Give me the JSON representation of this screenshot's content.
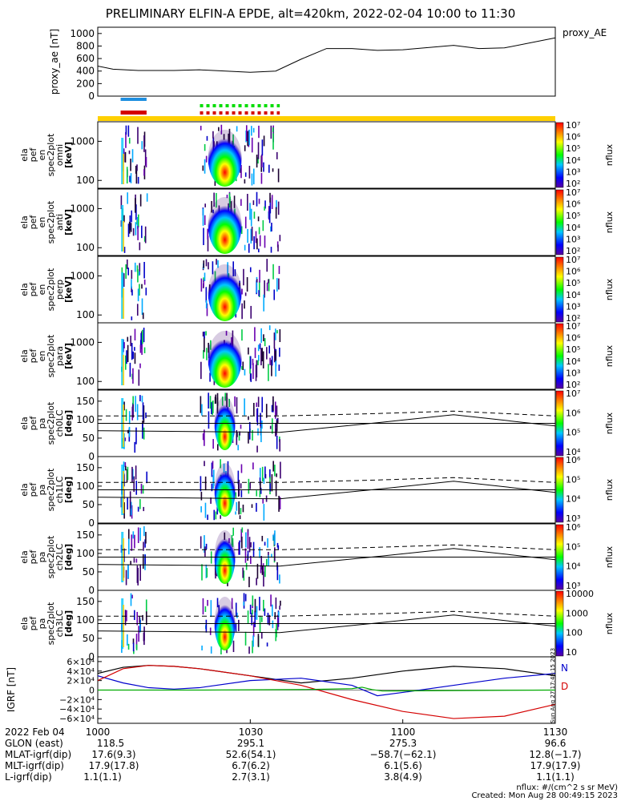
{
  "title": "PRELIMINARY ELFIN-A EPDE, alt=420km, 2022-02-04 10:00 to 11:30",
  "proxy_ae": {
    "ylabel": "proxy_ae [nT]",
    "legend": "proxy_AE",
    "ticks": [
      "0",
      "200",
      "400",
      "600",
      "800",
      "1000"
    ],
    "ylim": [
      0,
      1100
    ],
    "x": [
      0,
      3,
      8,
      15,
      20,
      30,
      35,
      40,
      45,
      50,
      55,
      60,
      70,
      75,
      80,
      90
    ],
    "y": [
      480,
      430,
      410,
      410,
      420,
      380,
      400,
      590,
      760,
      760,
      730,
      740,
      810,
      760,
      770,
      930
    ]
  },
  "bars": {
    "blue_segment": [
      4.5,
      9.6
    ],
    "red_segment": [
      4.5,
      9.6
    ],
    "green_dotted": [
      20.1,
      35.8
    ],
    "red_dotted": [
      20.1,
      35.8
    ],
    "yellow_full": [
      0,
      90
    ],
    "colors": {
      "blue": "#1f8fe0",
      "red": "#d40000",
      "green": "#00dd00",
      "yellow": "#ffd000"
    }
  },
  "spectral_panels": [
    {
      "labels": [
        "ela",
        "pef",
        "en",
        "spec2plot",
        "omni",
        "[keV]"
      ],
      "ticks": [
        "100",
        "1000"
      ],
      "cb_ticks": [
        "10²",
        "10³",
        "10⁴",
        "10⁵",
        "10⁶",
        "10⁷"
      ],
      "cb_label": "nflux"
    },
    {
      "labels": [
        "ela",
        "pef",
        "en",
        "spec2plot",
        "anti",
        "[keV]"
      ],
      "ticks": [
        "100",
        "1000"
      ],
      "cb_ticks": [
        "10²",
        "10³",
        "10⁴",
        "10⁵",
        "10⁶",
        "10⁷"
      ],
      "cb_label": "nflux"
    },
    {
      "labels": [
        "ela",
        "pef",
        "en",
        "spec2plot",
        "perp",
        "[keV]"
      ],
      "ticks": [
        "100",
        "1000"
      ],
      "cb_ticks": [
        "10²",
        "10³",
        "10⁴",
        "10⁵",
        "10⁶",
        "10⁷"
      ],
      "cb_label": "nflux"
    },
    {
      "labels": [
        "ela",
        "pef",
        "en",
        "spec2plot",
        "para",
        "[keV]"
      ],
      "ticks": [
        "100",
        "1000"
      ],
      "cb_ticks": [
        "10²",
        "10³",
        "10⁴",
        "10⁵",
        "10⁶",
        "10⁷"
      ],
      "cb_label": "nflux"
    }
  ],
  "pitch_panels": [
    {
      "labels": [
        "ela",
        "pef",
        "pa",
        "spec2plot",
        "ch0LC",
        "[deg]"
      ],
      "ticks": [
        "0",
        "50",
        "100",
        "150"
      ],
      "cb_ticks": [
        "10⁴",
        "10⁵",
        "10⁶",
        "10⁷"
      ],
      "cb_label": "nflux"
    },
    {
      "labels": [
        "ela",
        "pef",
        "pa",
        "spec2plot",
        "ch1LC",
        "[deg]"
      ],
      "ticks": [
        "0",
        "50",
        "100",
        "150"
      ],
      "cb_ticks": [
        "10³",
        "10⁴",
        "10⁵",
        "10⁶"
      ],
      "cb_label": "nflux"
    },
    {
      "labels": [
        "ela",
        "pef",
        "pa",
        "spec2plot",
        "ch2LC",
        "[deg]"
      ],
      "ticks": [
        "0",
        "50",
        "100",
        "150"
      ],
      "cb_ticks": [
        "10³",
        "10⁴",
        "10⁵",
        "10⁶"
      ],
      "cb_label": "nflux"
    },
    {
      "labels": [
        "ela",
        "pef",
        "pa",
        "spec2plot",
        "ch3LC",
        "[deg]"
      ],
      "ticks": [
        "0",
        "50",
        "100",
        "150"
      ],
      "cb_ticks": [
        "10",
        "100",
        "1000",
        "10000"
      ],
      "cb_label": "nflux"
    }
  ],
  "igrf": {
    "ylabel": "IGRF [nT]",
    "ticks": [
      "−6×10⁴",
      "−4×10⁴",
      "−2×10⁴",
      "0",
      "2×10⁴",
      "4×10⁴",
      "6×10⁴"
    ],
    "ylim": [
      -70000,
      70000
    ],
    "legend": [
      {
        "name": "N",
        "color": "#0000cc"
      },
      {
        "name": "D",
        "color": "#d40000"
      }
    ],
    "series": [
      {
        "name": "black",
        "color": "#000000",
        "x": [
          0,
          5,
          10,
          15,
          20,
          30,
          40,
          50,
          60,
          70,
          80,
          90
        ],
        "y": [
          35000,
          48000,
          52000,
          50000,
          45000,
          30000,
          15000,
          25000,
          40000,
          50000,
          45000,
          30000
        ]
      },
      {
        "name": "N",
        "color": "#0000cc",
        "x": [
          0,
          5,
          10,
          15,
          20,
          30,
          40,
          50,
          55,
          60,
          70,
          80,
          90
        ],
        "y": [
          30000,
          15000,
          5000,
          2000,
          5000,
          20000,
          25000,
          10000,
          -12000,
          -5000,
          10000,
          25000,
          35000
        ]
      },
      {
        "name": "D",
        "color": "#d40000",
        "x": [
          0,
          5,
          10,
          15,
          20,
          30,
          40,
          50,
          60,
          70,
          80,
          90
        ],
        "y": [
          20000,
          45000,
          52000,
          50000,
          45000,
          30000,
          10000,
          -20000,
          -45000,
          -60000,
          -55000,
          -30000
        ]
      },
      {
        "name": "Z",
        "color": "#00aa00",
        "x": [
          0,
          20,
          40,
          50,
          52,
          54,
          56,
          70,
          90
        ],
        "y": [
          0,
          0,
          1000,
          3000,
          6000,
          1000,
          -2000,
          -1000,
          0
        ]
      }
    ]
  },
  "x_axis": {
    "range_min": [
      0,
      90
    ],
    "ticks": [
      "1000",
      "1030",
      "1100",
      "1130"
    ],
    "tick_min": [
      0,
      30,
      60,
      90
    ]
  },
  "footer": {
    "rows": [
      {
        "label": "2022 Feb 04",
        "values": []
      },
      {
        "label": "GLON (east)",
        "values": [
          "118.5",
          "295.1",
          "275.3",
          "96.6"
        ]
      },
      {
        "label": "MLAT-igrf(dip)",
        "values": [
          "17.6(9.3)",
          "52.6(54.1)",
          "−58.7(−62.1)",
          "12.8(−1.7)"
        ]
      },
      {
        "label": "MLT-igrf(dip)",
        "values": [
          "17.9(17.8)",
          "6.7(6.2)",
          "6.1(5.6)",
          "17.9(17.9)"
        ]
      },
      {
        "label": "L-igrf(dip)",
        "values": [
          "1.1(1.1)",
          "2.7(3.1)",
          "3.8(4.9)",
          "1.1(1.1)"
        ]
      }
    ],
    "units_note": "nflux: #/(cm^2 s sr MeV)",
    "created": "Created: Mon Aug 28 00:49:15 2023",
    "side_stamp": "Sun Aug 27 17:48:15 2023"
  },
  "chart_data": {
    "type": "line",
    "title": "PRELIMINARY ELFIN-A EPDE, alt=420km, 2022-02-04 10:00 to 11:30",
    "xlabel": "",
    "ylabel": "proxy_ae [nT]",
    "x": [
      0,
      3,
      8,
      15,
      20,
      30,
      35,
      40,
      45,
      50,
      55,
      60,
      70,
      75,
      80,
      90
    ],
    "series": [
      {
        "name": "proxy_AE",
        "values": [
          480,
          430,
          410,
          410,
          420,
          380,
          400,
          590,
          760,
          760,
          730,
          740,
          810,
          760,
          770,
          930
        ]
      }
    ],
    "ylim": [
      0,
      1100
    ]
  }
}
